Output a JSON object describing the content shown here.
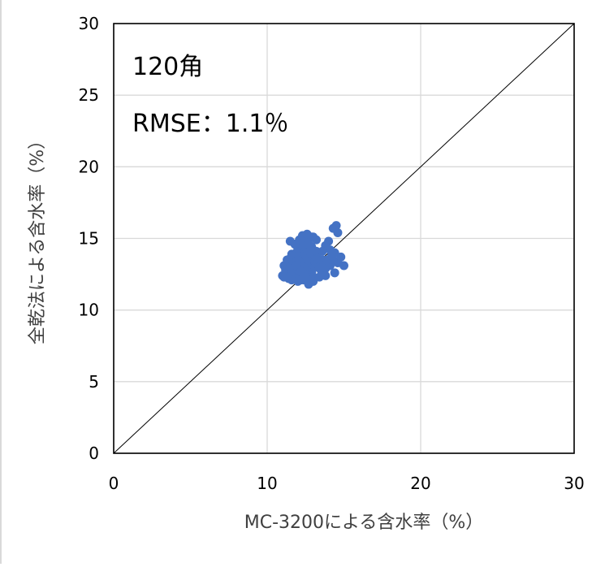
{
  "chart_data": {
    "type": "scatter",
    "xlabel": "MC-3200による含水率（%）",
    "ylabel": "全乾法による含水率（%）",
    "xlim": [
      0,
      30
    ],
    "ylim": [
      0,
      30
    ],
    "x_ticks": [
      "0",
      "10",
      "20",
      "30"
    ],
    "y_ticks": [
      "0",
      "5",
      "10",
      "15",
      "20",
      "25",
      "30"
    ],
    "grid": true,
    "legend": "none",
    "reference_line": {
      "x": [
        0,
        30
      ],
      "y": [
        0,
        30
      ],
      "color": "#000000"
    },
    "annotations": [
      "120角",
      "RMSE：1.1％"
    ],
    "point_color": "#4472C4",
    "series": [
      {
        "x": [
          11.0,
          11.2,
          11.1,
          11.3,
          11.4,
          11.5,
          11.6,
          11.7,
          11.8,
          11.9,
          12.0,
          12.1,
          12.2,
          12.3,
          12.4,
          12.5,
          12.6,
          12.7,
          12.8,
          12.9,
          13.0,
          11.2,
          11.4,
          11.6,
          11.8,
          12.0,
          12.2,
          12.4,
          12.6,
          12.8,
          13.0,
          11.1,
          11.3,
          11.5,
          11.7,
          11.9,
          12.1,
          12.3,
          12.5,
          12.7,
          12.9,
          13.1,
          13.3,
          13.5,
          11.3,
          11.5,
          11.7,
          11.9,
          12.1,
          12.3,
          12.5,
          12.7,
          12.9,
          13.1,
          11.6,
          11.9,
          12.2,
          12.5,
          12.8,
          13.1,
          12.0,
          12.3,
          12.6,
          12.9,
          13.2,
          11.5,
          11.8,
          12.1,
          12.4,
          12.7,
          13.0,
          13.3,
          13.6,
          13.9,
          14.2,
          13.4,
          13.7,
          14.0,
          14.3,
          14.6,
          13.5,
          13.8,
          14.1,
          14.4,
          14.1,
          14.4,
          14.6,
          14.5,
          14.3,
          14.0,
          13.8,
          12.2,
          12.6,
          13.0,
          13.4,
          13.8,
          12.4,
          12.8,
          13.2,
          13.6,
          12.3,
          12.6,
          12.9,
          11.6,
          11.9,
          12.2,
          15.0,
          14.8,
          13.9,
          14.2,
          12.7,
          12.5
        ],
        "y": [
          12.4,
          12.6,
          12.3,
          12.5,
          12.2,
          12.4,
          12.1,
          12.3,
          12.5,
          12.2,
          12.0,
          12.4,
          12.6,
          12.3,
          12.1,
          12.5,
          12.2,
          11.8,
          12.4,
          12.6,
          12.3,
          12.8,
          12.9,
          12.7,
          13.0,
          12.8,
          12.9,
          12.7,
          12.8,
          13.0,
          12.9,
          13.1,
          13.2,
          13.0,
          13.3,
          13.1,
          13.2,
          13.4,
          13.1,
          13.3,
          13.2,
          13.0,
          13.2,
          13.1,
          13.5,
          13.6,
          13.4,
          13.7,
          13.5,
          13.6,
          13.8,
          13.5,
          13.7,
          13.4,
          13.9,
          14.0,
          14.1,
          13.9,
          14.0,
          13.8,
          14.3,
          14.5,
          14.2,
          14.4,
          14.1,
          14.8,
          14.6,
          14.9,
          14.7,
          15.0,
          15.1,
          13.6,
          13.5,
          13.3,
          13.4,
          13.0,
          13.2,
          13.4,
          13.5,
          13.3,
          12.8,
          12.9,
          13.1,
          12.6,
          14.2,
          14.0,
          15.4,
          15.9,
          15.7,
          14.8,
          14.5,
          12.1,
          12.2,
          12.0,
          12.3,
          12.4,
          14.6,
          14.3,
          14.9,
          14.1,
          15.2,
          15.3,
          15.1,
          12.9,
          13.1,
          12.7,
          13.1,
          13.7,
          13.5,
          13.8,
          14.6,
          12.3
        ]
      }
    ]
  }
}
